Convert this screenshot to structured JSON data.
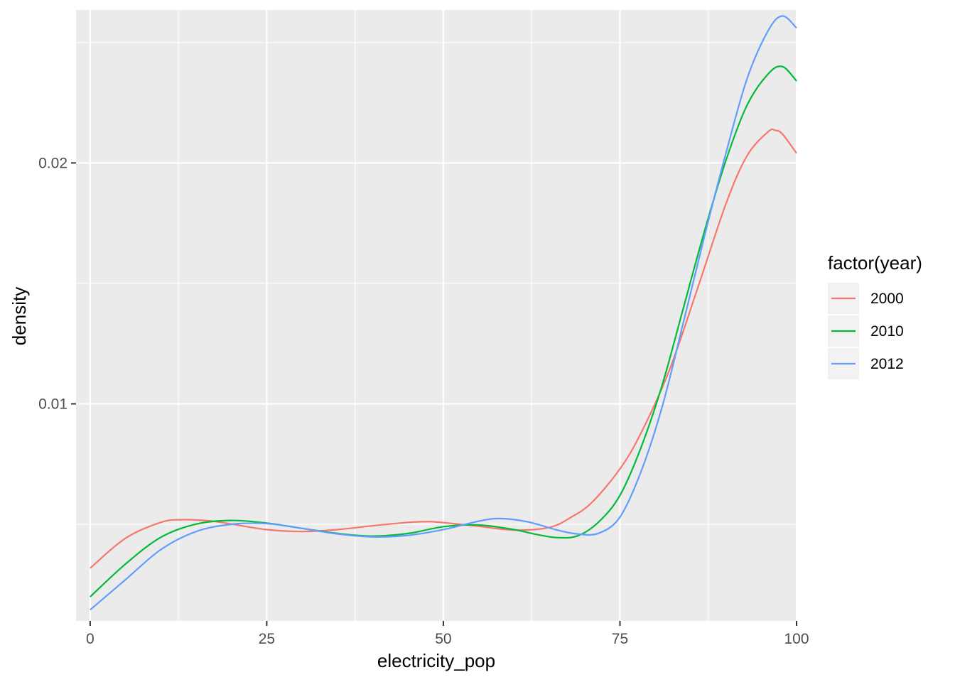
{
  "chart_data": {
    "type": "line",
    "title": "",
    "xlabel": "electricity_pop",
    "ylabel": "density",
    "xlim": [
      -2,
      100
    ],
    "ylim": [
      0.00099,
      0.02635
    ],
    "x_ticks": [
      0,
      25,
      50,
      75,
      100
    ],
    "x_tick_labels": [
      "0",
      "25",
      "50",
      "75",
      "100"
    ],
    "y_ticks": [
      0.01,
      0.02
    ],
    "y_tick_labels": [
      "0.01",
      "0.02"
    ],
    "grid": true,
    "legend": {
      "title": "factor(year)",
      "position": "right"
    },
    "series": [
      {
        "name": "2000",
        "color": "#F8766D",
        "points": [
          [
            0,
            0.00318
          ],
          [
            5,
            0.00442
          ],
          [
            10,
            0.00508
          ],
          [
            13,
            0.00519
          ],
          [
            17,
            0.00514
          ],
          [
            20,
            0.00501
          ],
          [
            25,
            0.00478
          ],
          [
            30,
            0.0047
          ],
          [
            35,
            0.00478
          ],
          [
            40,
            0.00494
          ],
          [
            45,
            0.00508
          ],
          [
            48,
            0.00511
          ],
          [
            50,
            0.00507
          ],
          [
            55,
            0.00492
          ],
          [
            60,
            0.00476
          ],
          [
            65,
            0.00487
          ],
          [
            68,
            0.00528
          ],
          [
            71,
            0.0059
          ],
          [
            75,
            0.0073
          ],
          [
            78,
            0.0088
          ],
          [
            82,
            0.0114
          ],
          [
            86,
            0.0148
          ],
          [
            90,
            0.0183
          ],
          [
            93,
            0.0203
          ],
          [
            96,
            0.0213
          ],
          [
            97,
            0.02135
          ],
          [
            98,
            0.0212
          ],
          [
            100,
            0.0204
          ]
        ]
      },
      {
        "name": "2010",
        "color": "#00BA38",
        "points": [
          [
            0,
            0.00199
          ],
          [
            5,
            0.00335
          ],
          [
            10,
            0.00446
          ],
          [
            15,
            0.00501
          ],
          [
            20,
            0.00516
          ],
          [
            25,
            0.00505
          ],
          [
            30,
            0.00483
          ],
          [
            35,
            0.00462
          ],
          [
            40,
            0.00451
          ],
          [
            45,
            0.00462
          ],
          [
            50,
            0.0049
          ],
          [
            55,
            0.00497
          ],
          [
            60,
            0.00478
          ],
          [
            63,
            0.00459
          ],
          [
            66,
            0.00445
          ],
          [
            69,
            0.00452
          ],
          [
            72,
            0.0051
          ],
          [
            75,
            0.0062
          ],
          [
            78,
            0.0082
          ],
          [
            81,
            0.0108
          ],
          [
            84,
            0.014
          ],
          [
            87,
            0.0172
          ],
          [
            90,
            0.0201
          ],
          [
            93,
            0.0224
          ],
          [
            96,
            0.0237
          ],
          [
            98,
            0.024
          ],
          [
            100,
            0.0234
          ]
        ]
      },
      {
        "name": "2012",
        "color": "#619CFF",
        "points": [
          [
            0,
            0.00145
          ],
          [
            5,
            0.0027
          ],
          [
            10,
            0.00395
          ],
          [
            15,
            0.0047
          ],
          [
            20,
            0.005
          ],
          [
            25,
            0.00503
          ],
          [
            30,
            0.00483
          ],
          [
            35,
            0.0046
          ],
          [
            40,
            0.00448
          ],
          [
            45,
            0.00454
          ],
          [
            50,
            0.00478
          ],
          [
            55,
            0.00513
          ],
          [
            58,
            0.00524
          ],
          [
            62,
            0.0051
          ],
          [
            66,
            0.00477
          ],
          [
            69,
            0.0046
          ],
          [
            72,
            0.00463
          ],
          [
            75,
            0.0053
          ],
          [
            78,
            0.0072
          ],
          [
            81,
            0.0099
          ],
          [
            84,
            0.0134
          ],
          [
            87,
            0.017
          ],
          [
            90,
            0.0204
          ],
          [
            93,
            0.0235
          ],
          [
            96,
            0.0255
          ],
          [
            98,
            0.0261
          ],
          [
            100,
            0.0256
          ]
        ]
      }
    ]
  }
}
